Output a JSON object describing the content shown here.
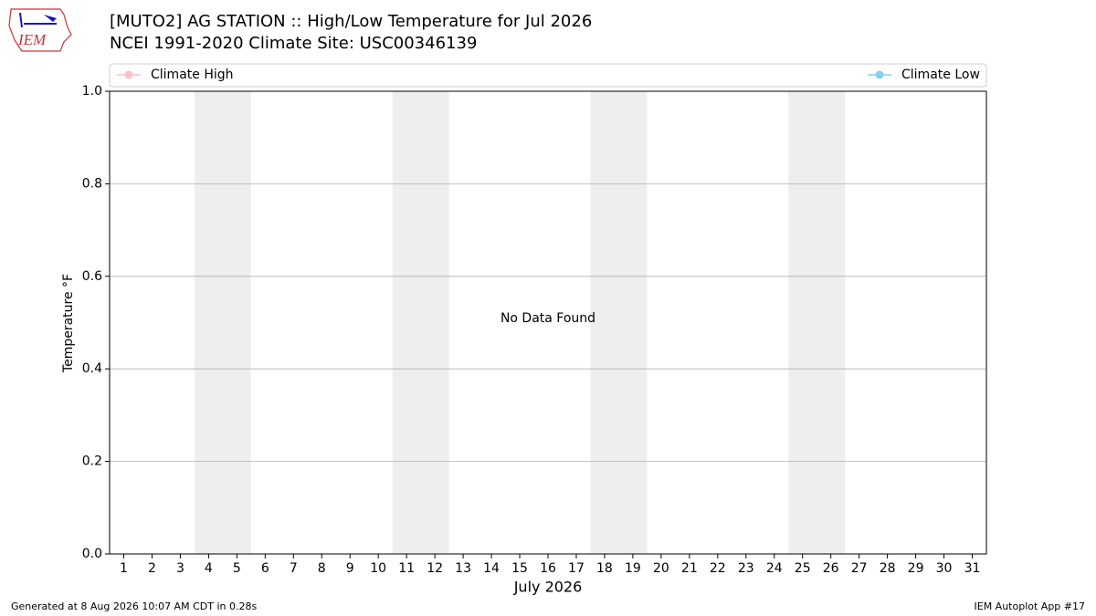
{
  "logo": "IEM",
  "chart_data": {
    "type": "line",
    "title": "[MUTO2] AG STATION :: High/Low Temperature for Jul 2026",
    "subtitle": "NCEI 1991-2020 Climate Site: USC00346139",
    "x_label": "July 2026",
    "y_label": "Temperature °F",
    "annotation": "No Data Found",
    "x": [
      1,
      2,
      3,
      4,
      5,
      6,
      7,
      8,
      9,
      10,
      11,
      12,
      13,
      14,
      15,
      16,
      17,
      18,
      19,
      20,
      21,
      22,
      23,
      24,
      25,
      26,
      27,
      28,
      29,
      30,
      31
    ],
    "xlim": [
      0.5,
      31.5
    ],
    "xticks": [
      1,
      2,
      3,
      4,
      5,
      6,
      7,
      8,
      9,
      10,
      11,
      12,
      13,
      14,
      15,
      16,
      17,
      18,
      19,
      20,
      21,
      22,
      23,
      24,
      25,
      26,
      27,
      28,
      29,
      30,
      31
    ],
    "ylim": [
      0,
      1
    ],
    "yticks": [
      {
        "value": 0,
        "label": "0.0"
      },
      {
        "value": 0.2,
        "label": "0.2"
      },
      {
        "value": 0.4,
        "label": "0.4"
      },
      {
        "value": 0.6,
        "label": "0.6"
      },
      {
        "value": 0.8,
        "label": "0.8"
      },
      {
        "value": 1,
        "label": "1.0"
      }
    ],
    "grid": true,
    "shaded_days": [
      [
        4,
        5
      ],
      [
        11,
        12
      ],
      [
        18,
        19
      ],
      [
        25,
        26
      ]
    ],
    "shade_color": "#eeeeee",
    "series": [
      {
        "name": "Climate High",
        "color": "#ffc0cb",
        "values": [
          null,
          null,
          null,
          null,
          null,
          null,
          null,
          null,
          null,
          null,
          null,
          null,
          null,
          null,
          null,
          null,
          null,
          null,
          null,
          null,
          null,
          null,
          null,
          null,
          null,
          null,
          null,
          null,
          null,
          null,
          null
        ]
      },
      {
        "name": "Climate Low",
        "color": "#87ceeb",
        "values": [
          null,
          null,
          null,
          null,
          null,
          null,
          null,
          null,
          null,
          null,
          null,
          null,
          null,
          null,
          null,
          null,
          null,
          null,
          null,
          null,
          null,
          null,
          null,
          null,
          null,
          null,
          null,
          null,
          null,
          null,
          null
        ]
      }
    ],
    "footer_left": "Generated at 8 Aug 2026 10:07 AM CDT in 0.28s",
    "footer_right": "IEM Autoplot App #17"
  }
}
